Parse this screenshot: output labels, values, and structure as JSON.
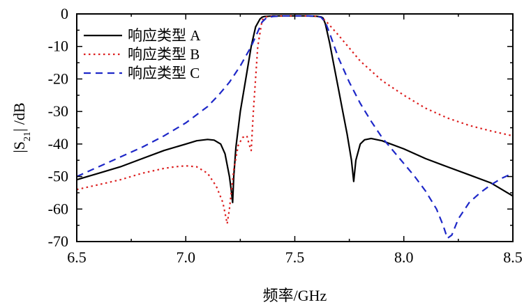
{
  "chart_data": {
    "type": "line",
    "xlabel": "频率/GHz",
    "ylabel_parts": {
      "pre": "|S",
      "sub": "21",
      "post": "| /dB"
    },
    "xlim": [
      6.5,
      8.5
    ],
    "ylim": [
      -70,
      0
    ],
    "xticks": [
      6.5,
      7.0,
      7.5,
      8.0,
      8.5
    ],
    "xtick_labels": [
      "6.5",
      "7.0",
      "7.5",
      "8.0",
      "8.5"
    ],
    "yticks": [
      0,
      -10,
      -20,
      -30,
      -40,
      -50,
      -60,
      -70
    ],
    "ytick_labels": [
      "0",
      "-10",
      "-20",
      "-30",
      "-40",
      "-50",
      "-60",
      "-70"
    ],
    "grid": false,
    "legend_position": "top-left",
    "series": [
      {
        "name": "响应类型 A",
        "color": "#000000",
        "style": "solid",
        "x": [
          6.5,
          6.6,
          6.7,
          6.8,
          6.9,
          7.0,
          7.05,
          7.1,
          7.13,
          7.16,
          7.18,
          7.2,
          7.21,
          7.215,
          7.22,
          7.23,
          7.25,
          7.28,
          7.3,
          7.32,
          7.34,
          7.35,
          7.36,
          7.38,
          7.4,
          7.45,
          7.5,
          7.55,
          7.6,
          7.62,
          7.63,
          7.64,
          7.66,
          7.68,
          7.7,
          7.72,
          7.74,
          7.76,
          7.77,
          7.78,
          7.8,
          7.82,
          7.85,
          7.9,
          8.0,
          8.1,
          8.2,
          8.3,
          8.4,
          8.5
        ],
        "y": [
          -51,
          -49,
          -47,
          -44.5,
          -42,
          -40,
          -39,
          -38.6,
          -38.8,
          -40,
          -43,
          -50,
          -55,
          -58,
          -50,
          -41,
          -30,
          -18,
          -10,
          -4,
          -1.6,
          -1.0,
          -0.8,
          -0.7,
          -0.6,
          -0.6,
          -0.6,
          -0.6,
          -0.7,
          -0.9,
          -1.3,
          -3,
          -9,
          -16,
          -23,
          -30,
          -37,
          -45,
          -51.5,
          -45,
          -40,
          -38.7,
          -38.3,
          -39,
          -41.5,
          -44.5,
          -47,
          -49.5,
          -52,
          -56
        ]
      },
      {
        "name": "响应类型 B",
        "color": "#dc1e1e",
        "style": "dotted",
        "x": [
          6.5,
          6.6,
          6.7,
          6.8,
          6.9,
          6.95,
          7.0,
          7.05,
          7.1,
          7.14,
          7.17,
          7.19,
          7.2,
          7.22,
          7.24,
          7.26,
          7.28,
          7.29,
          7.3,
          7.31,
          7.33,
          7.35,
          7.36,
          7.38,
          7.4,
          7.45,
          7.5,
          7.55,
          7.6,
          7.62,
          7.64,
          7.66,
          7.7,
          7.75,
          7.8,
          7.85,
          7.9,
          8.0,
          8.1,
          8.2,
          8.3,
          8.4,
          8.5
        ],
        "y": [
          -54,
          -52.5,
          -51,
          -49,
          -47.5,
          -47,
          -46.7,
          -47,
          -49,
          -53,
          -58,
          -64.5,
          -60,
          -48,
          -40.5,
          -38,
          -37.5,
          -40,
          -42,
          -30,
          -10,
          -2,
          -1.0,
          -0.8,
          -0.7,
          -0.6,
          -0.6,
          -0.6,
          -0.7,
          -1.0,
          -2,
          -3.5,
          -6.5,
          -10.5,
          -14.5,
          -17.5,
          -20.5,
          -25,
          -29,
          -32,
          -34.3,
          -36,
          -37.5
        ]
      },
      {
        "name": "响应类型 C",
        "color": "#1e28c8",
        "style": "dashed",
        "x": [
          6.5,
          6.6,
          6.7,
          6.8,
          6.9,
          7.0,
          7.1,
          7.15,
          7.2,
          7.25,
          7.3,
          7.33,
          7.35,
          7.37,
          7.4,
          7.45,
          7.5,
          7.55,
          7.6,
          7.62,
          7.64,
          7.66,
          7.7,
          7.75,
          7.8,
          7.85,
          7.9,
          7.95,
          8.0,
          8.05,
          8.1,
          8.15,
          8.18,
          8.2,
          8.22,
          8.25,
          8.3,
          8.35,
          8.4,
          8.45,
          8.5
        ],
        "y": [
          -50,
          -47,
          -44,
          -41,
          -37.5,
          -33.5,
          -28.5,
          -25,
          -21,
          -16,
          -10,
          -5.5,
          -2.5,
          -1.2,
          -0.8,
          -0.6,
          -0.6,
          -0.6,
          -0.7,
          -1.0,
          -2.5,
          -6,
          -13.5,
          -21,
          -27.5,
          -33,
          -38,
          -42,
          -46,
          -50,
          -54.5,
          -60,
          -65,
          -69,
          -68,
          -63,
          -58,
          -55,
          -52.5,
          -50.5,
          -49
        ]
      }
    ]
  }
}
